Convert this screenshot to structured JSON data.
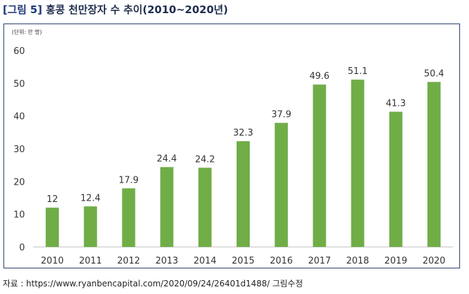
{
  "figure": {
    "tag": "[그림 5]",
    "title": "홍콩 천만장자 수 추이(2010~2020년)"
  },
  "unit_label": "(단위: 만 명)",
  "source": "자료 : https://www.ryanbencapital.com/2020/09/24/26401d1488/  그림수정",
  "colors": {
    "bar": "#70ad47",
    "axis": "#bfbfbf",
    "frame": "#2a3d6a"
  },
  "chart_data": {
    "type": "bar",
    "categories": [
      "2010",
      "2011",
      "2012",
      "2013",
      "2014",
      "2015",
      "2016",
      "2017",
      "2018",
      "2019",
      "2020"
    ],
    "values": [
      12,
      12.4,
      17.9,
      24.4,
      24.2,
      32.3,
      37.9,
      49.6,
      51.1,
      41.3,
      50.4
    ],
    "data_labels": [
      "12",
      "12.4",
      "17.9",
      "24.4",
      "24.2",
      "32.3",
      "37.9",
      "49.6",
      "51.1",
      "41.3",
      "50.4"
    ],
    "yticks": [
      "0",
      "10",
      "20",
      "30",
      "40",
      "50",
      "60"
    ],
    "ylim": [
      0,
      60
    ],
    "grid": false,
    "legend": "none"
  }
}
